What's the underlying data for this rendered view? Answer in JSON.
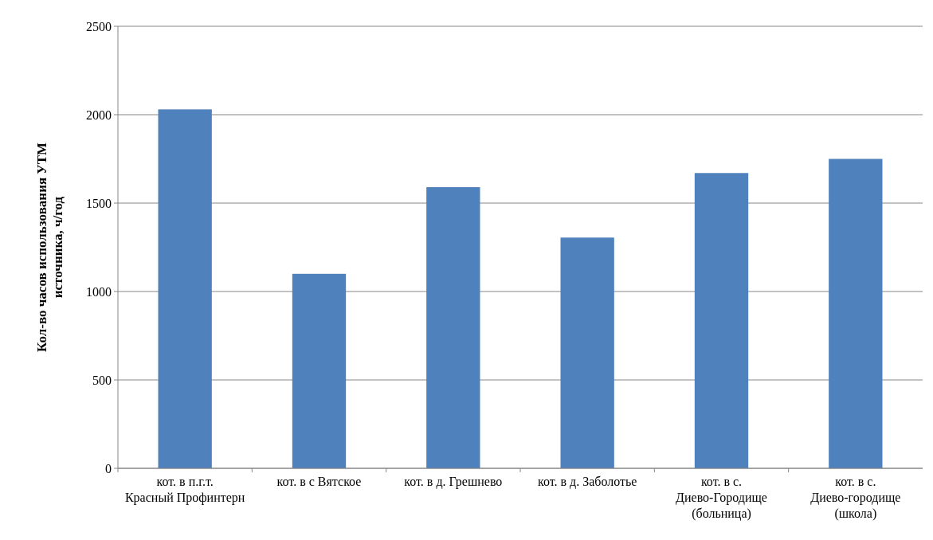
{
  "chart_data": {
    "type": "bar",
    "ylabel": "Кол-во часов использования УТМ источника, ч/год",
    "categories": [
      "кот. в п.г.т. Красный Профинтерн",
      "кот. в с Вятское",
      "кот. в д. Грешнево",
      "кот. в д. Заболотье",
      "кот. в с. Диево-Городище (больница)",
      "кот. в с. Диево-городище (школа)"
    ],
    "values": [
      2030,
      1100,
      1590,
      1305,
      1670,
      1750
    ],
    "color": "#4f81bd",
    "ylim": [
      0,
      2500
    ],
    "yticks": [
      0,
      500,
      1000,
      1500,
      2000,
      2500
    ],
    "grid": "y"
  }
}
